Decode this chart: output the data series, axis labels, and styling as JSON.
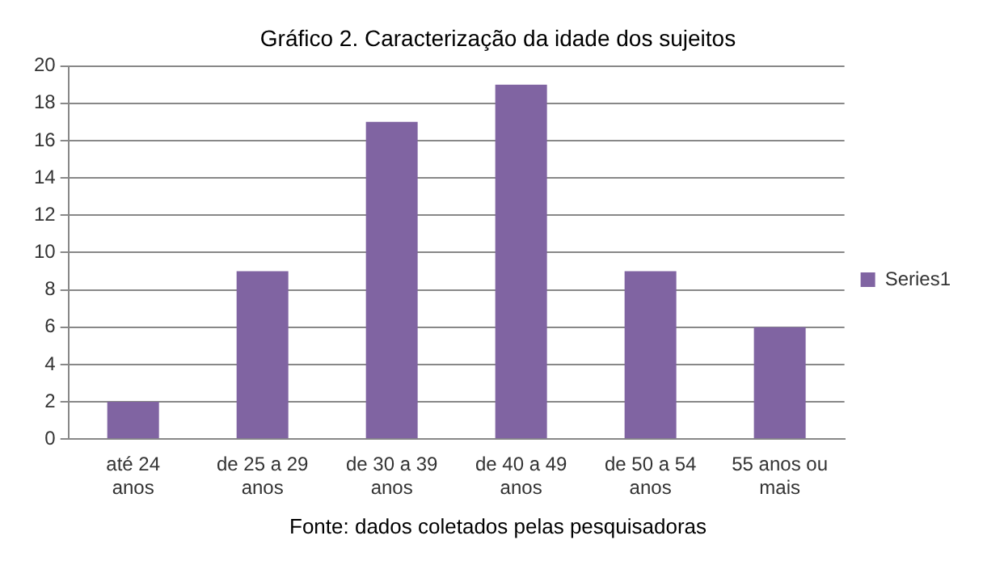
{
  "chart_data": {
    "type": "bar",
    "title": "Gráfico 2. Caracterização da idade dos sujeitos",
    "categories": [
      "até 24 anos",
      "de 25 a 29 anos",
      "de 30 a 39 anos",
      "de 40 a 49 anos",
      "de 50 a 54 anos",
      "55 anos ou mais"
    ],
    "series": [
      {
        "name": "Series1",
        "color": "#8064a2",
        "values": [
          2,
          9,
          17,
          19,
          9,
          6
        ]
      }
    ],
    "ylim": [
      0,
      20
    ],
    "yticks": [
      0,
      2,
      4,
      6,
      8,
      10,
      12,
      14,
      16,
      18,
      20
    ],
    "grid": "y",
    "legend": "right",
    "annotations": [
      "Fonte: dados coletados pelas pesquisadoras"
    ]
  }
}
